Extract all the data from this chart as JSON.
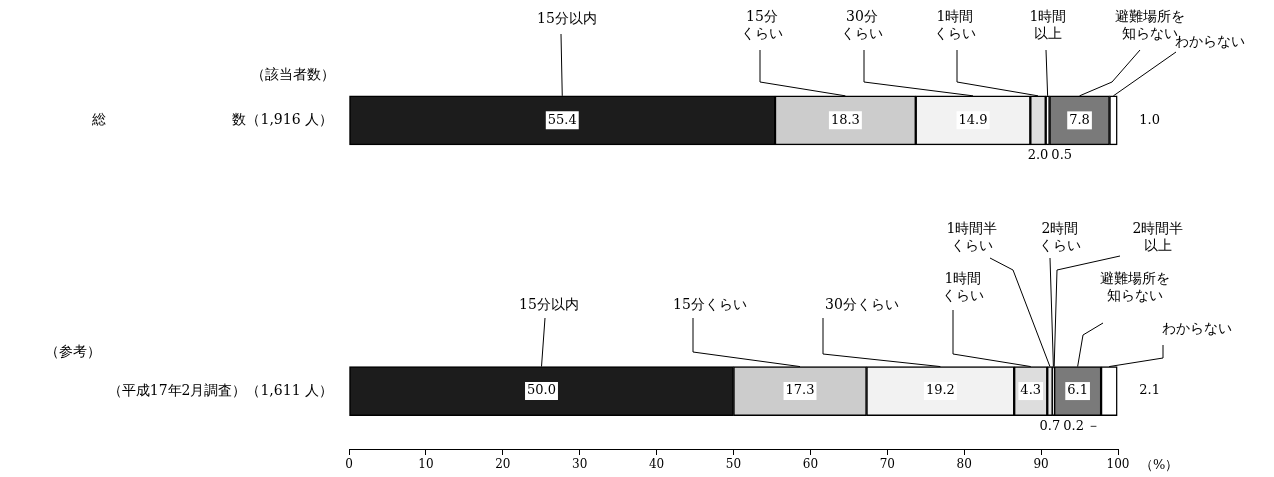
{
  "chart_data": {
    "type": "bar",
    "orientation": "horizontal",
    "stacked": true,
    "grid": false,
    "legend": false,
    "categories": [
      "総　　　　　　　　　数（1,916 人）",
      "（平成17年2月調査）（1,611 人）"
    ],
    "xlim": [
      0,
      100
    ],
    "xticks": [
      0,
      10,
      20,
      30,
      40,
      50,
      60,
      70,
      80,
      90,
      100
    ],
    "xlabel": "（%）",
    "annotations": [
      "（該当者数）",
      "（参考）"
    ],
    "series": [
      {
        "name": "15分以内",
        "color": "#1c1c1c",
        "values": [
          55.4,
          50.0
        ],
        "value_labels": [
          "55.4",
          "50.0"
        ]
      },
      {
        "name": "15分くらい",
        "color": "#cccccc",
        "values": [
          18.3,
          17.3
        ],
        "value_labels": [
          "18.3",
          "17.3"
        ]
      },
      {
        "name": "30分くらい",
        "color": "#f2f2f2",
        "values": [
          14.9,
          19.2
        ],
        "value_labels": [
          "14.9",
          "19.2"
        ]
      },
      {
        "name": "1時間くらい",
        "color": "#dddddd",
        "values": [
          2.0,
          4.3
        ],
        "value_labels": [
          "2.0",
          "4.3"
        ]
      },
      {
        "name": "1時間半くらい",
        "color": "#e6e6e6",
        "values": [
          null,
          0.7
        ],
        "value_labels": [
          null,
          "0.7"
        ]
      },
      {
        "name": "2時間くらい",
        "color": "#ffffff",
        "values": [
          null,
          0.2
        ],
        "value_labels": [
          null,
          "0.2"
        ]
      },
      {
        "name": "2時間半以上",
        "values": [
          null,
          0
        ],
        "value_labels": [
          null,
          "－"
        ]
      },
      {
        "name": "1時間以上",
        "color": "#ffffff",
        "values": [
          0.5,
          null
        ],
        "value_labels": [
          "0.5",
          null
        ]
      },
      {
        "name": "避難場所を知らない",
        "color": "#7a7a7a",
        "values": [
          7.8,
          6.1
        ],
        "value_labels": [
          "7.8",
          "6.1"
        ]
      },
      {
        "name": "わからない",
        "color": "#ffffff",
        "values": [
          1.0,
          2.1
        ],
        "value_labels": [
          "1.0",
          "2.1"
        ]
      }
    ]
  }
}
